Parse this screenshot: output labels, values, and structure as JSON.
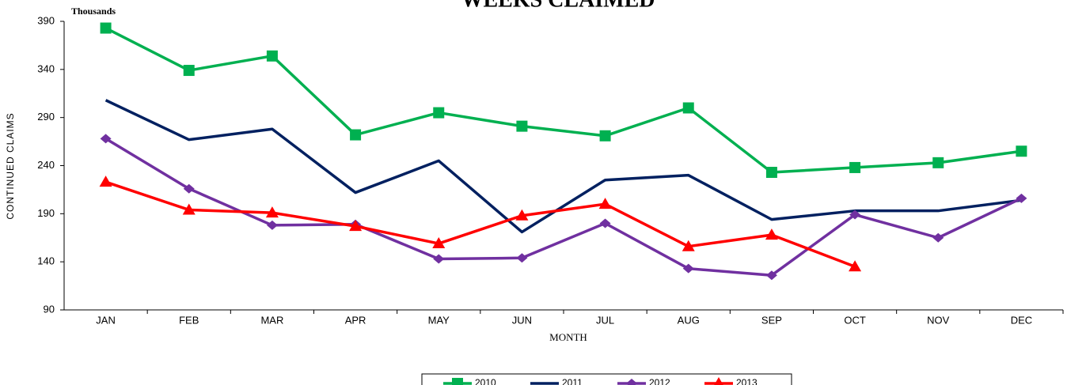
{
  "chart_data": {
    "type": "line",
    "title": "WEEKS CLAIMED",
    "unit_label": "Thousands",
    "y_label": "CONTINUED CLAIMS",
    "x_label": "MONTH",
    "categories": [
      "JAN",
      "FEB",
      "MAR",
      "APR",
      "MAY",
      "JUN",
      "JUL",
      "AUG",
      "SEP",
      "OCT",
      "NOV",
      "DEC"
    ],
    "series": [
      {
        "name": "2010",
        "color": "#00b050",
        "marker": "square",
        "values": [
          383,
          339,
          354,
          272,
          295,
          281,
          271,
          300,
          233,
          238,
          243,
          255
        ]
      },
      {
        "name": "2011",
        "color": "#002060",
        "marker": "none",
        "values": [
          308,
          267,
          278,
          212,
          245,
          171,
          225,
          230,
          184,
          193,
          193,
          204
        ]
      },
      {
        "name": "2012",
        "color": "#7030a0",
        "marker": "diamond",
        "values": [
          268,
          216,
          178,
          179,
          143,
          144,
          180,
          133,
          126,
          189,
          165,
          206
        ]
      },
      {
        "name": "2013",
        "color": "#ff0000",
        "marker": "triangle",
        "values": [
          223,
          194,
          191,
          177,
          159,
          188,
          200,
          156,
          168,
          135,
          null,
          null
        ]
      }
    ],
    "ylim": [
      90,
      390
    ],
    "yticks": [
      90,
      140,
      190,
      240,
      290,
      340,
      390
    ],
    "grid": false
  }
}
